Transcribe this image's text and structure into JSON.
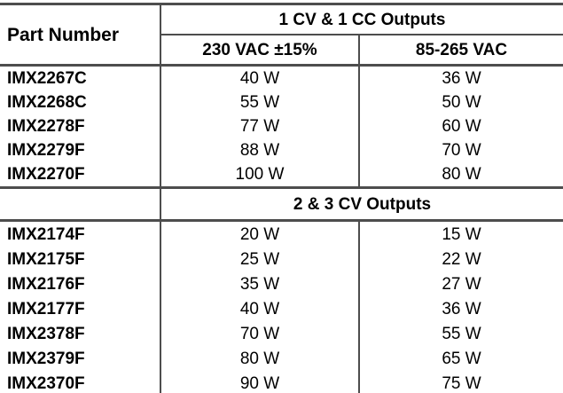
{
  "colors": {
    "line": "#4d4d4d",
    "text": "#000000",
    "background": "#ffffff"
  },
  "table": {
    "part_number_header": "Part Number",
    "sections": [
      {
        "title": "1 CV & 1 CC Outputs",
        "columns": [
          "230 VAC ±15%",
          "85-265 VAC"
        ],
        "rows": [
          {
            "part": "IMX2267C",
            "w230": "40 W",
            "w85": "36 W"
          },
          {
            "part": "IMX2268C",
            "w230": "55 W",
            "w85": "50 W"
          },
          {
            "part": "IMX2278F",
            "w230": "77 W",
            "w85": "60 W"
          },
          {
            "part": "IMX2279F",
            "w230": "88 W",
            "w85": "70 W"
          },
          {
            "part": "IMX2270F",
            "w230": "100 W",
            "w85": "80 W"
          }
        ]
      },
      {
        "title": "2 & 3 CV Outputs",
        "rows": [
          {
            "part": "IMX2174F",
            "w230": "20 W",
            "w85": "15 W"
          },
          {
            "part": "IMX2175F",
            "w230": "25 W",
            "w85": "22 W"
          },
          {
            "part": "IMX2176F",
            "w230": "35 W",
            "w85": "27 W"
          },
          {
            "part": "IMX2177F",
            "w230": "40 W",
            "w85": "36 W"
          },
          {
            "part": "IMX2378F",
            "w230": "70 W",
            "w85": "55 W"
          },
          {
            "part": "IMX2379F",
            "w230": "80 W",
            "w85": "65 W"
          },
          {
            "part": "IMX2370F",
            "w230": "90 W",
            "w85": "75 W"
          }
        ]
      }
    ]
  }
}
